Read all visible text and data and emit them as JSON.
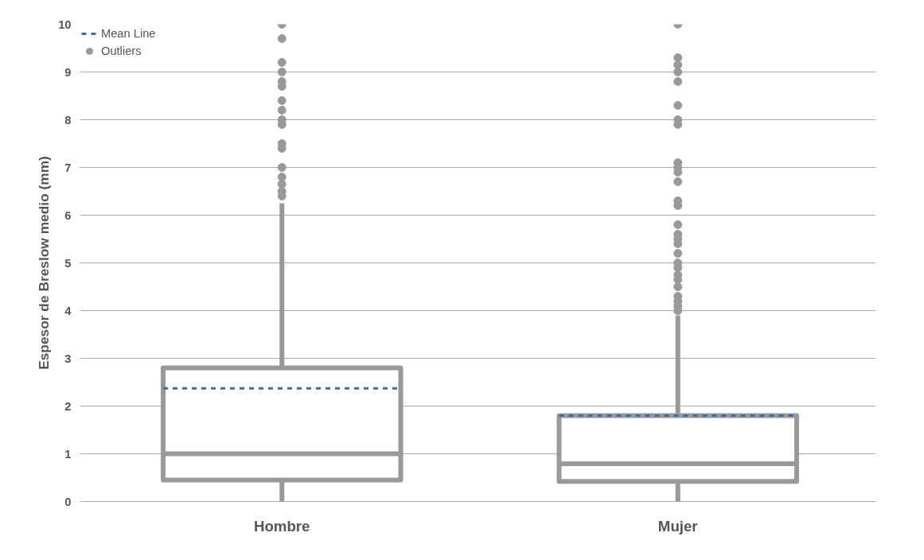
{
  "chart_data": {
    "type": "box",
    "ylabel": "Espesor de Breslow medio (mm)",
    "categories": [
      "Hombre",
      "Mujer"
    ],
    "boxes": [
      {
        "low": 0,
        "q1": 0.45,
        "median": 1.0,
        "q3": 2.8,
        "high": 6.25,
        "mean": 2.37
      },
      {
        "low": 0,
        "q1": 0.42,
        "median": 0.79,
        "q3": 1.8,
        "high": 3.9,
        "mean": 1.8
      }
    ],
    "series": [
      {
        "name": "Outliers",
        "type": "scatter",
        "color": "#999999",
        "x": [
          "Hombre",
          "Hombre",
          "Hombre",
          "Hombre",
          "Hombre",
          "Hombre",
          "Hombre",
          "Hombre",
          "Hombre",
          "Hombre",
          "Hombre",
          "Hombre",
          "Hombre",
          "Hombre",
          "Hombre",
          "Hombre",
          "Hombre",
          "Mujer",
          "Mujer",
          "Mujer",
          "Mujer",
          "Mujer",
          "Mujer",
          "Mujer",
          "Mujer",
          "Mujer",
          "Mujer",
          "Mujer",
          "Mujer",
          "Mujer",
          "Mujer",
          "Mujer",
          "Mujer",
          "Mujer",
          "Mujer",
          "Mujer",
          "Mujer",
          "Mujer",
          "Mujer",
          "Mujer",
          "Mujer",
          "Mujer",
          "Mujer",
          "Mujer",
          "Mujer"
        ],
        "values": [
          10,
          9.7,
          9.2,
          9.0,
          8.8,
          8.7,
          8.4,
          8.2,
          8.0,
          7.9,
          7.5,
          7.4,
          7.0,
          6.8,
          6.65,
          6.5,
          6.4,
          10,
          9.3,
          9.15,
          9.0,
          8.8,
          8.3,
          8.0,
          7.9,
          7.1,
          7.0,
          6.9,
          6.7,
          6.3,
          6.2,
          5.8,
          5.6,
          5.5,
          5.4,
          5.2,
          5.0,
          4.9,
          4.75,
          4.65,
          4.5,
          4.3,
          4.2,
          4.1,
          4.0
        ]
      }
    ],
    "color": "#999999",
    "ylim": [
      0,
      10
    ],
    "yticks": [
      0,
      1,
      2,
      3,
      4,
      5,
      6,
      7,
      8,
      9,
      10
    ],
    "grid": "y",
    "legend": "top left",
    "line_style": "dashed",
    "marker": "circle",
    "annotations": [
      "Mean Line"
    ]
  }
}
